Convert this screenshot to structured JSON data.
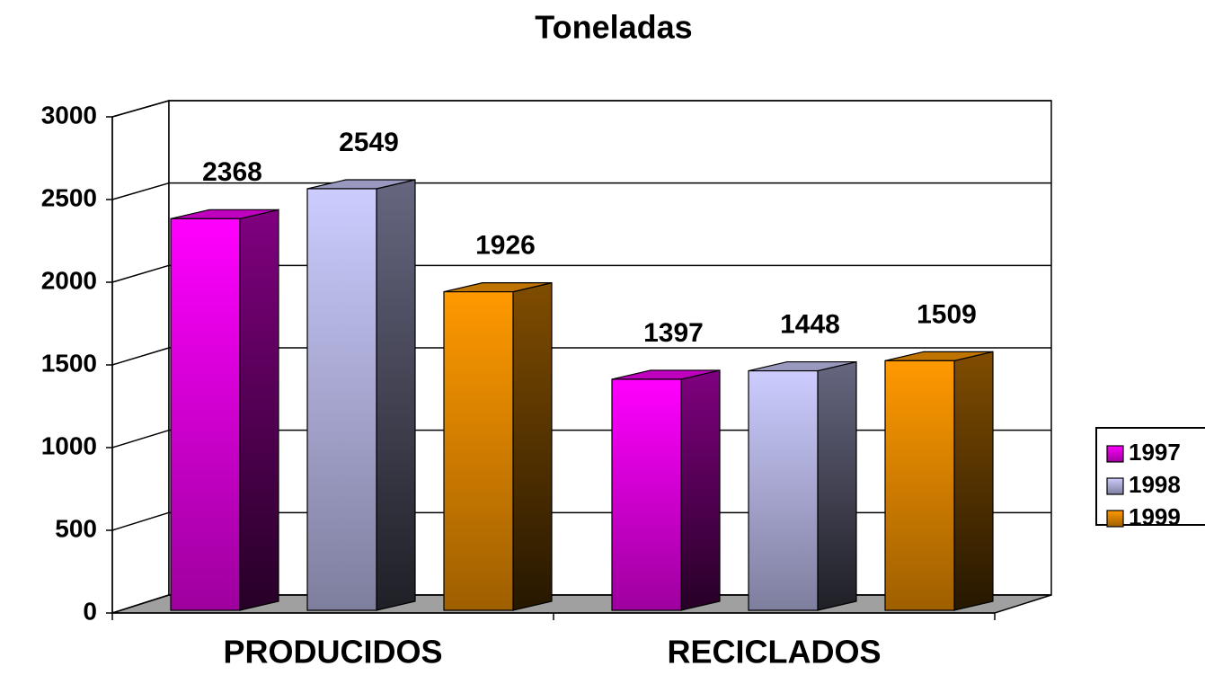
{
  "chart_data": {
    "type": "bar3d",
    "title": "Toneladas",
    "categories": [
      "PRODUCIDOS",
      "RECICLADOS"
    ],
    "series": [
      {
        "name": "1997",
        "color": "#ff00ff",
        "values": [
          2368,
          1397
        ]
      },
      {
        "name": "1998",
        "color": "#ccccff",
        "values": [
          2549,
          1448
        ]
      },
      {
        "name": "1999",
        "color": "#ff9900",
        "values": [
          1926,
          1509
        ]
      }
    ],
    "ylim": [
      0,
      3000
    ],
    "yticks": [
      0,
      500,
      1000,
      1500,
      2000,
      2500,
      3000
    ],
    "grid": true,
    "legend": "right"
  }
}
